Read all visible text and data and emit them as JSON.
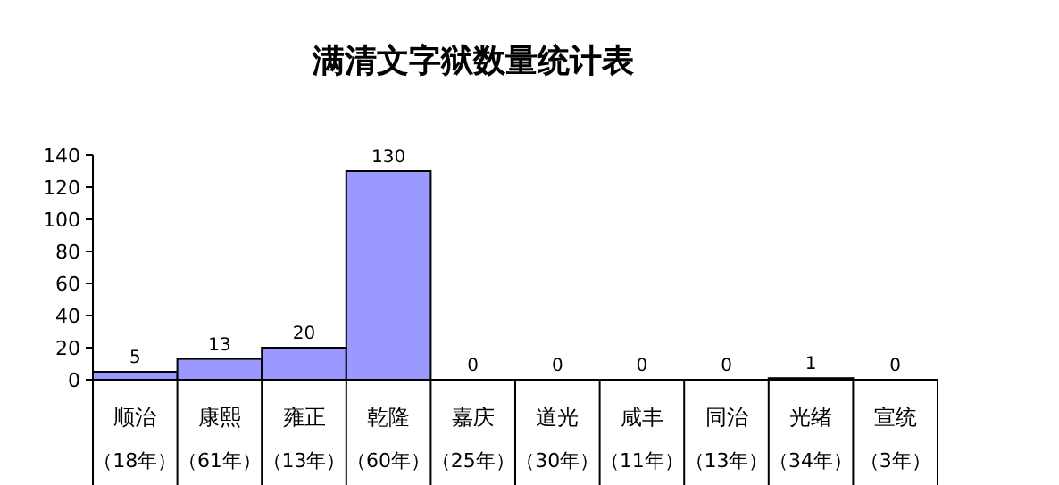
{
  "chart_data": {
    "type": "bar",
    "title": "满清文字狱数量统计表",
    "categories": [
      "顺治（18年）",
      "康熙（61年）",
      "雍正（13年）",
      "乾隆（60年）",
      "嘉庆（25年）",
      "道光（30年）",
      "咸丰（11年）",
      "同治（13年）",
      "光绪（34年）",
      "宣统（3年）"
    ],
    "values": [
      5,
      13,
      20,
      130,
      0,
      0,
      0,
      0,
      1,
      0
    ],
    "color": "#9999ff",
    "ylim": [
      0,
      140
    ],
    "yticks": [
      0,
      20,
      40,
      60,
      80,
      100,
      120,
      140
    ],
    "data_labels": true
  }
}
